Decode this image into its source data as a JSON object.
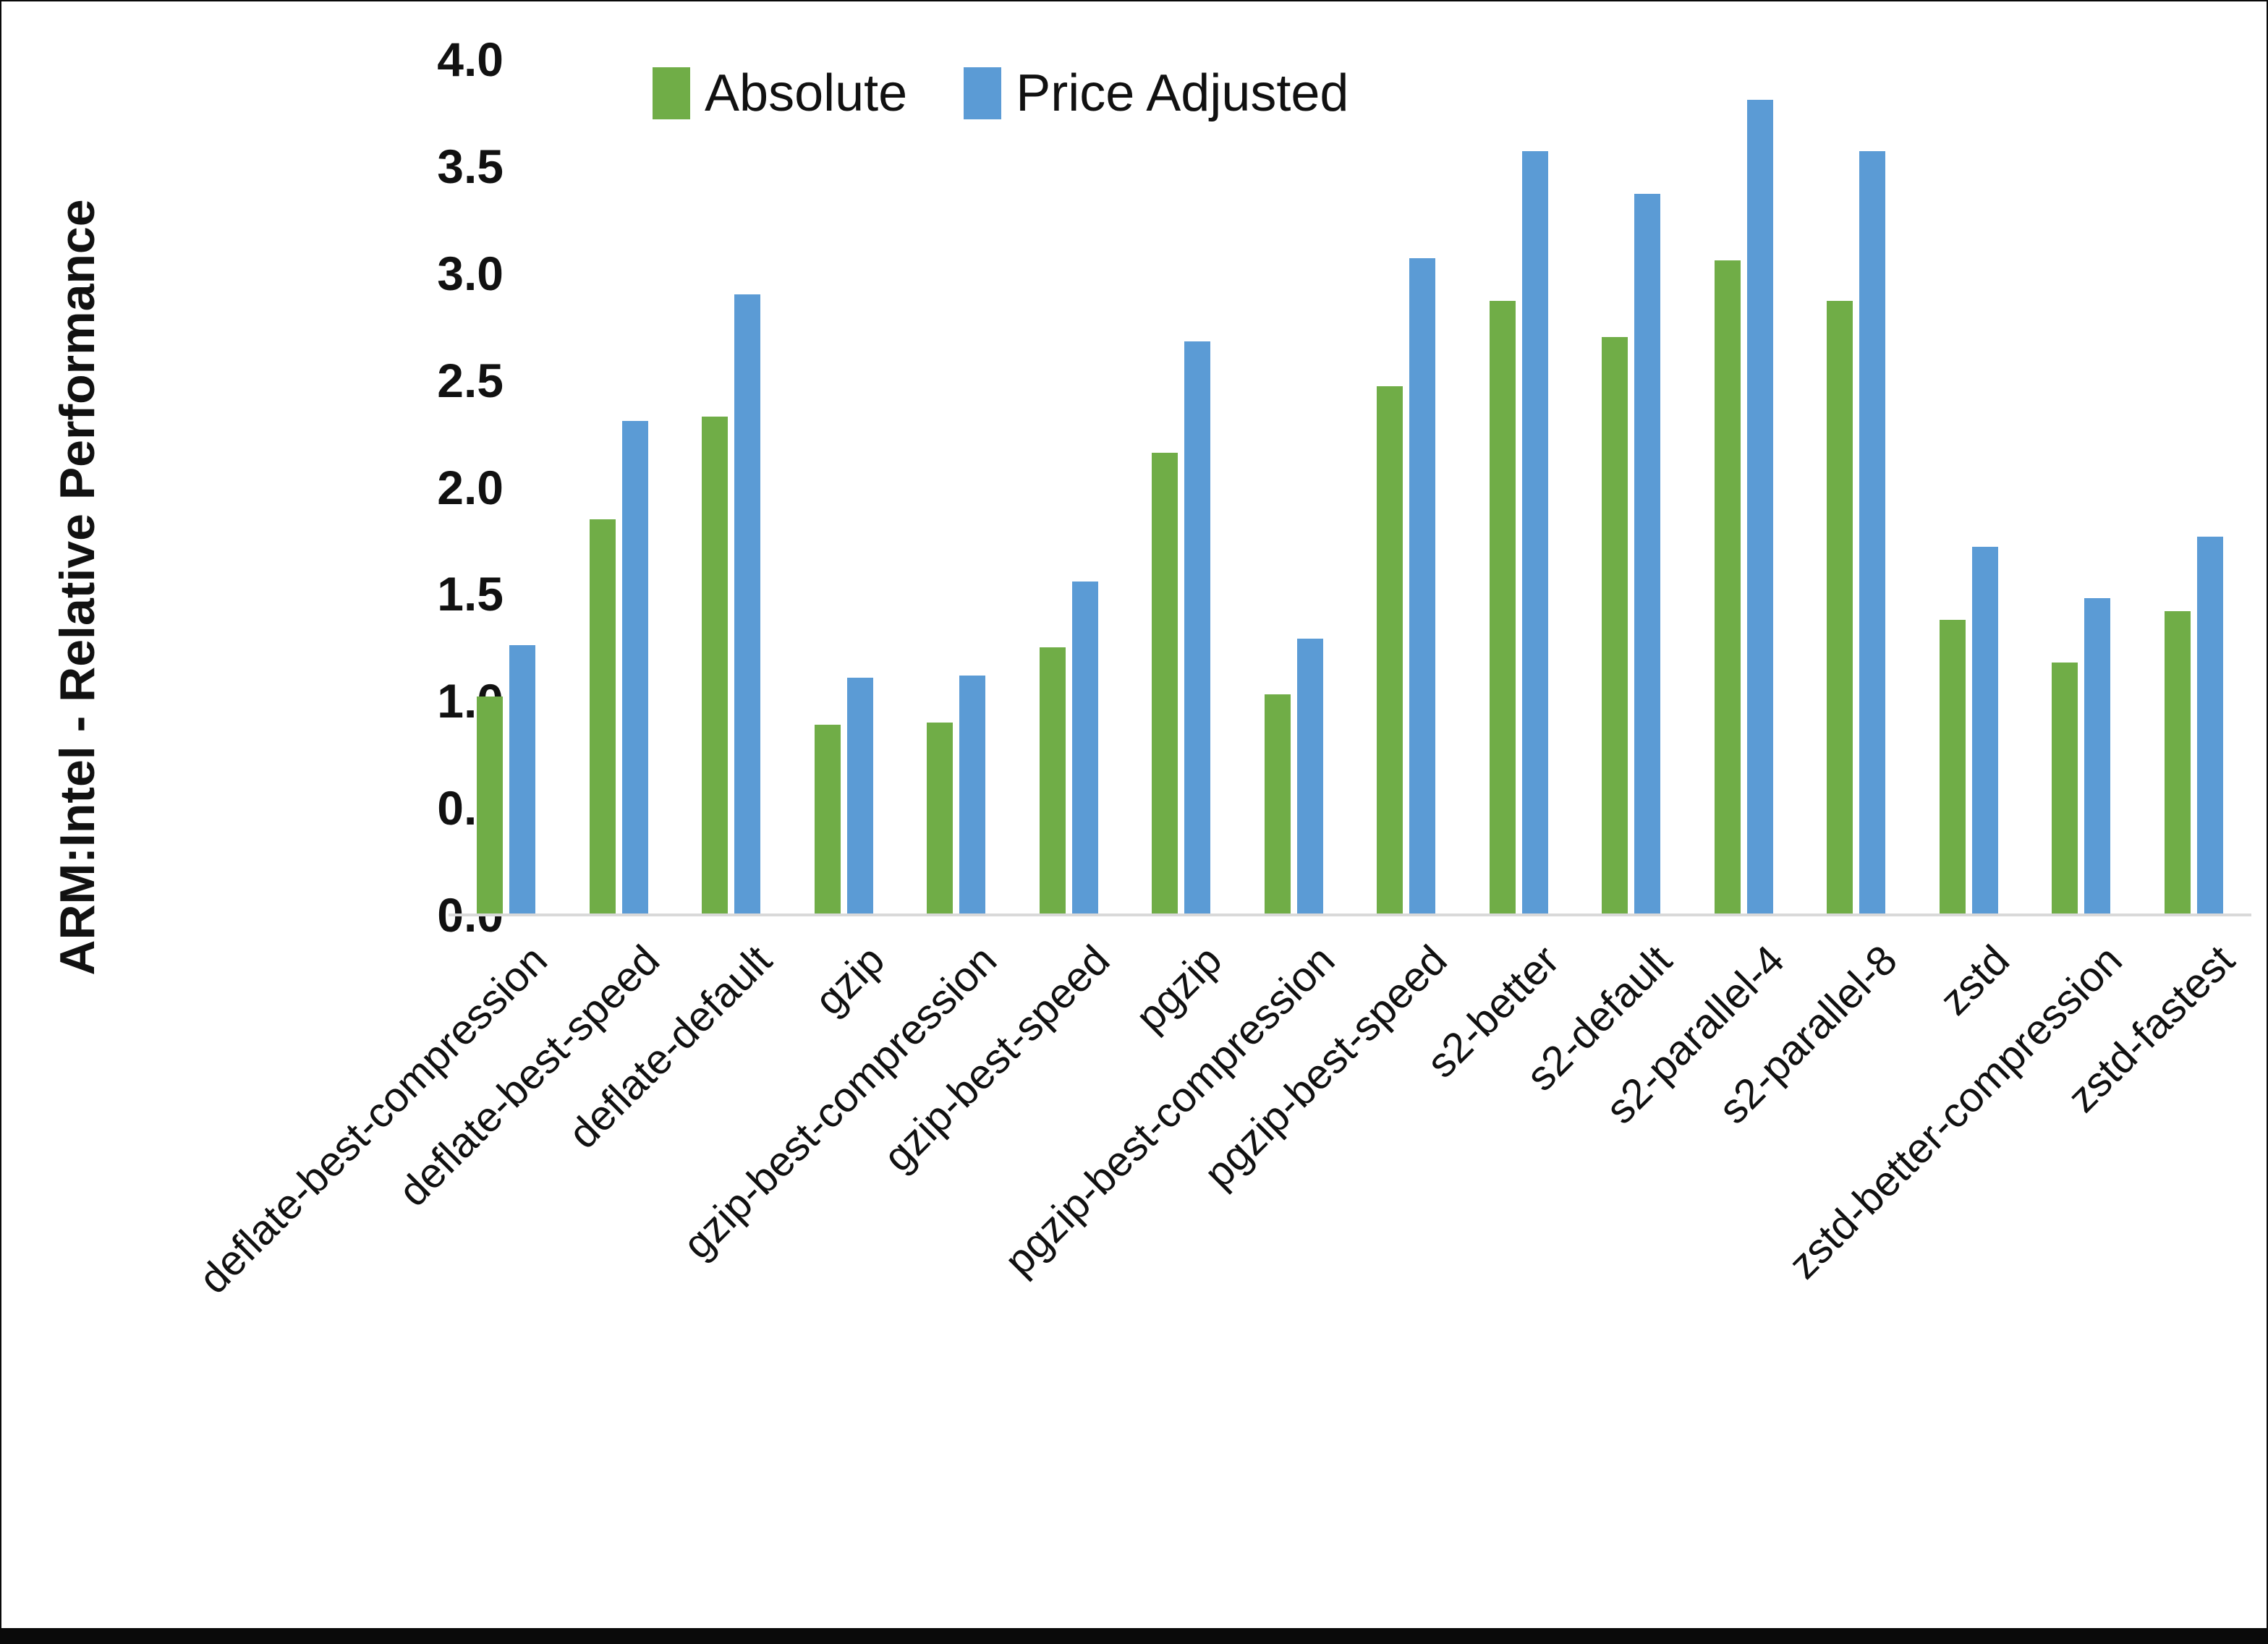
{
  "chart_data": {
    "type": "bar",
    "title": "",
    "xlabel": "",
    "ylabel": "ARM:Intel - Relative Performance",
    "ylim": [
      0.0,
      4.0
    ],
    "ytick_step": 0.5,
    "yticks": [
      "0.0",
      "0.5",
      "1.0",
      "1.5",
      "2.0",
      "2.5",
      "3.0",
      "3.5",
      "4.0"
    ],
    "grid": false,
    "legend_position": "top-center",
    "background_color": "#ffffff",
    "axis_line_color": "#d9d9d9",
    "categories": [
      "deflate-best-compression",
      "deflate-best-speed",
      "deflate-default",
      "gzip",
      "gzip-best-compression",
      "gzip-best-speed",
      "pgzip",
      "pgzip-best-compression",
      "pgzip-best-speed",
      "s2-better",
      "s2-default",
      "s2-parallel-4",
      "s2-parallel-8",
      "zstd",
      "zstd-better-compression",
      "zstd-fastest"
    ],
    "series": [
      {
        "name": "Absolute",
        "color": "#70AD47",
        "values": [
          1.02,
          1.85,
          2.33,
          0.89,
          0.9,
          1.25,
          2.16,
          1.03,
          2.47,
          2.87,
          2.7,
          3.06,
          2.87,
          1.38,
          1.18,
          1.42
        ]
      },
      {
        "name": "Price Adjusted",
        "color": "#5B9BD5",
        "values": [
          1.26,
          2.31,
          2.9,
          1.11,
          1.12,
          1.56,
          2.68,
          1.29,
          3.07,
          3.57,
          3.37,
          3.81,
          3.57,
          1.72,
          1.48,
          1.77
        ]
      }
    ]
  }
}
